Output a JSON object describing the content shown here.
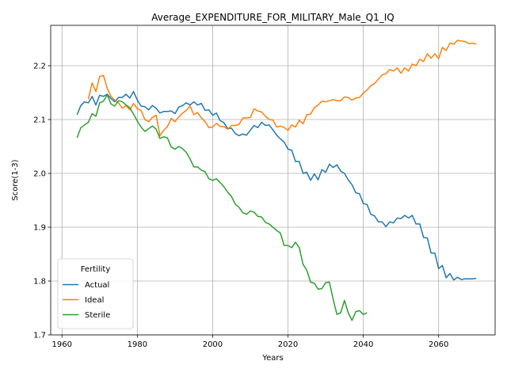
{
  "chart_data": {
    "type": "line",
    "title": "Average_EXPENDITURE_FOR_MILITARY_Male_Q1_IQ",
    "xlabel": "Years",
    "ylabel": "Score(1-3)",
    "xlim": [
      1957,
      2075
    ],
    "ylim": [
      1.7,
      2.275
    ],
    "xticks": [
      1960,
      1980,
      2000,
      2020,
      2040,
      2060
    ],
    "yticks": [
      1.7,
      1.8,
      1.9,
      2.0,
      2.1,
      2.2
    ],
    "grid": true,
    "legend": {
      "title": "Fertility",
      "placement": "lower-left"
    },
    "series": [
      {
        "name": "Actual",
        "color": "#1f77b4",
        "x": [
          1964,
          1965,
          1966,
          1967,
          1968,
          1969,
          1970,
          1971,
          1972,
          1973,
          1974,
          1975,
          1976,
          1977,
          1978,
          1979,
          1980,
          1981,
          1982,
          1983,
          1984,
          1985,
          1986,
          1987,
          1988,
          1989,
          1990,
          1991,
          1992,
          1993,
          1994,
          1995,
          1996,
          1997,
          1998,
          1999,
          2000,
          2001,
          2002,
          2003,
          2004,
          2005,
          2006,
          2007,
          2008,
          2009,
          2010,
          2011,
          2012,
          2013,
          2014,
          2015,
          2016,
          2017,
          2018,
          2019,
          2020,
          2021,
          2022,
          2023,
          2024,
          2025,
          2026,
          2027,
          2028,
          2029,
          2030,
          2031,
          2032,
          2033,
          2034,
          2035,
          2036,
          2037,
          2038,
          2039,
          2040,
          2041,
          2042,
          2043,
          2044,
          2045,
          2046,
          2047,
          2048,
          2049,
          2050,
          2051,
          2052,
          2053,
          2054,
          2055,
          2056,
          2057,
          2058,
          2059,
          2060,
          2061,
          2062,
          2063,
          2064,
          2065,
          2066,
          2067,
          2068,
          2069,
          2070
        ],
        "values": [
          2.109,
          2.126,
          2.133,
          2.131,
          2.143,
          2.127,
          2.145,
          2.143,
          2.147,
          2.139,
          2.133,
          2.141,
          2.141,
          2.147,
          2.14,
          2.152,
          2.136,
          2.125,
          2.124,
          2.118,
          2.126,
          2.121,
          2.112,
          2.115,
          2.115,
          2.116,
          2.111,
          2.123,
          2.126,
          2.131,
          2.127,
          2.133,
          2.127,
          2.13,
          2.117,
          2.118,
          2.108,
          2.112,
          2.098,
          2.094,
          2.083,
          2.084,
          2.074,
          2.07,
          2.073,
          2.071,
          2.08,
          2.089,
          2.085,
          2.095,
          2.089,
          2.09,
          2.081,
          2.071,
          2.064,
          2.058,
          2.045,
          2.043,
          2.022,
          2.022,
          2.0,
          2.002,
          1.987,
          1.999,
          1.988,
          2.007,
          2.002,
          2.017,
          2.011,
          2.016,
          2.004,
          2.0,
          1.988,
          1.979,
          1.964,
          1.962,
          1.944,
          1.942,
          1.924,
          1.921,
          1.91,
          1.91,
          1.901,
          1.91,
          1.908,
          1.917,
          1.916,
          1.922,
          1.917,
          1.922,
          1.906,
          1.906,
          1.881,
          1.88,
          1.852,
          1.852,
          1.823,
          1.829,
          1.806,
          1.814,
          1.802,
          1.807,
          1.803,
          1.804,
          1.804,
          1.804,
          1.805
        ]
      },
      {
        "name": "Ideal",
        "color": "#ff7f0e",
        "x": [
          1964,
          1965,
          1966,
          1967,
          1968,
          1969,
          1970,
          1971,
          1972,
          1973,
          1974,
          1975,
          1976,
          1977,
          1978,
          1979,
          1980,
          1981,
          1982,
          1983,
          1984,
          1985,
          1986,
          1987,
          1988,
          1989,
          1990,
          1991,
          1992,
          1993,
          1994,
          1995,
          1996,
          1997,
          1998,
          1999,
          2000,
          2001,
          2002,
          2003,
          2004,
          2005,
          2006,
          2007,
          2008,
          2009,
          2010,
          2011,
          2012,
          2013,
          2014,
          2015,
          2016,
          2017,
          2018,
          2019,
          2020,
          2021,
          2022,
          2023,
          2024,
          2025,
          2026,
          2027,
          2028,
          2029,
          2030,
          2031,
          2032,
          2033,
          2034,
          2035,
          2036,
          2037,
          2038,
          2039,
          2040,
          2041,
          2042,
          2043,
          2044,
          2045,
          2046,
          2047,
          2048,
          2049,
          2050,
          2051,
          2052,
          2053,
          2054,
          2055,
          2056,
          2057,
          2058,
          2059,
          2060,
          2061,
          2062,
          2063,
          2064,
          2065,
          2066,
          2067,
          2068,
          2069,
          2070
        ],
        "values": [
          null,
          null,
          null,
          2.138,
          2.168,
          2.152,
          2.18,
          2.182,
          2.158,
          2.143,
          2.136,
          2.131,
          2.121,
          2.126,
          2.118,
          2.13,
          2.12,
          2.117,
          2.1,
          2.096,
          2.104,
          2.108,
          2.07,
          2.08,
          2.087,
          2.102,
          2.096,
          2.105,
          2.112,
          2.117,
          2.125,
          2.109,
          2.113,
          2.103,
          2.096,
          2.085,
          2.086,
          2.093,
          2.087,
          2.087,
          2.082,
          2.089,
          2.089,
          2.091,
          2.103,
          2.103,
          2.104,
          2.12,
          2.116,
          2.114,
          2.106,
          2.1,
          2.099,
          2.086,
          2.088,
          2.085,
          2.08,
          2.09,
          2.086,
          2.099,
          2.092,
          2.109,
          2.11,
          2.122,
          2.127,
          2.134,
          2.133,
          2.135,
          2.137,
          2.135,
          2.135,
          2.142,
          2.141,
          2.136,
          2.14,
          2.141,
          2.149,
          2.155,
          2.163,
          2.167,
          2.175,
          2.183,
          2.185,
          2.193,
          2.19,
          2.196,
          2.186,
          2.196,
          2.19,
          2.203,
          2.2,
          2.212,
          2.208,
          2.222,
          2.214,
          2.222,
          2.213,
          2.234,
          2.228,
          2.242,
          2.24,
          2.247,
          2.246,
          2.245,
          2.241,
          2.242,
          2.24
        ]
      },
      {
        "name": "Sterile",
        "color": "#2ca02c",
        "x": [
          1964,
          1965,
          1966,
          1967,
          1968,
          1969,
          1970,
          1971,
          1972,
          1973,
          1974,
          1975,
          1976,
          1977,
          1978,
          1979,
          1980,
          1981,
          1982,
          1983,
          1984,
          1985,
          1986,
          1987,
          1988,
          1989,
          1990,
          1991,
          1992,
          1993,
          1994,
          1995,
          1996,
          1997,
          1998,
          1999,
          2000,
          2001,
          2002,
          2003,
          2004,
          2005,
          2006,
          2007,
          2008,
          2009,
          2010,
          2011,
          2012,
          2013,
          2014,
          2015,
          2016,
          2017,
          2018,
          2019,
          2020,
          2021,
          2022,
          2023,
          2024,
          2025,
          2026,
          2027,
          2028,
          2029,
          2030,
          2031,
          2032,
          2033,
          2034,
          2035,
          2036,
          2037,
          2038,
          2039,
          2040,
          2041
        ],
        "values": [
          2.066,
          2.085,
          2.09,
          2.095,
          2.111,
          2.106,
          2.131,
          2.134,
          2.146,
          2.129,
          2.125,
          2.135,
          2.133,
          2.127,
          2.122,
          2.11,
          2.097,
          2.086,
          2.078,
          2.083,
          2.088,
          2.082,
          2.065,
          2.068,
          2.066,
          2.049,
          2.045,
          2.05,
          2.046,
          2.039,
          2.027,
          2.012,
          2.012,
          2.006,
          2.003,
          1.99,
          1.987,
          1.99,
          1.983,
          1.975,
          1.965,
          1.957,
          1.943,
          1.937,
          1.927,
          1.924,
          1.93,
          1.928,
          1.92,
          1.919,
          1.909,
          1.906,
          1.9,
          1.894,
          1.889,
          1.866,
          1.866,
          1.862,
          1.872,
          1.862,
          1.831,
          1.82,
          1.798,
          1.796,
          1.785,
          1.786,
          1.797,
          1.798,
          1.766,
          1.738,
          1.741,
          1.764,
          1.741,
          1.727,
          1.743,
          1.745,
          1.738,
          1.741
        ]
      }
    ]
  }
}
